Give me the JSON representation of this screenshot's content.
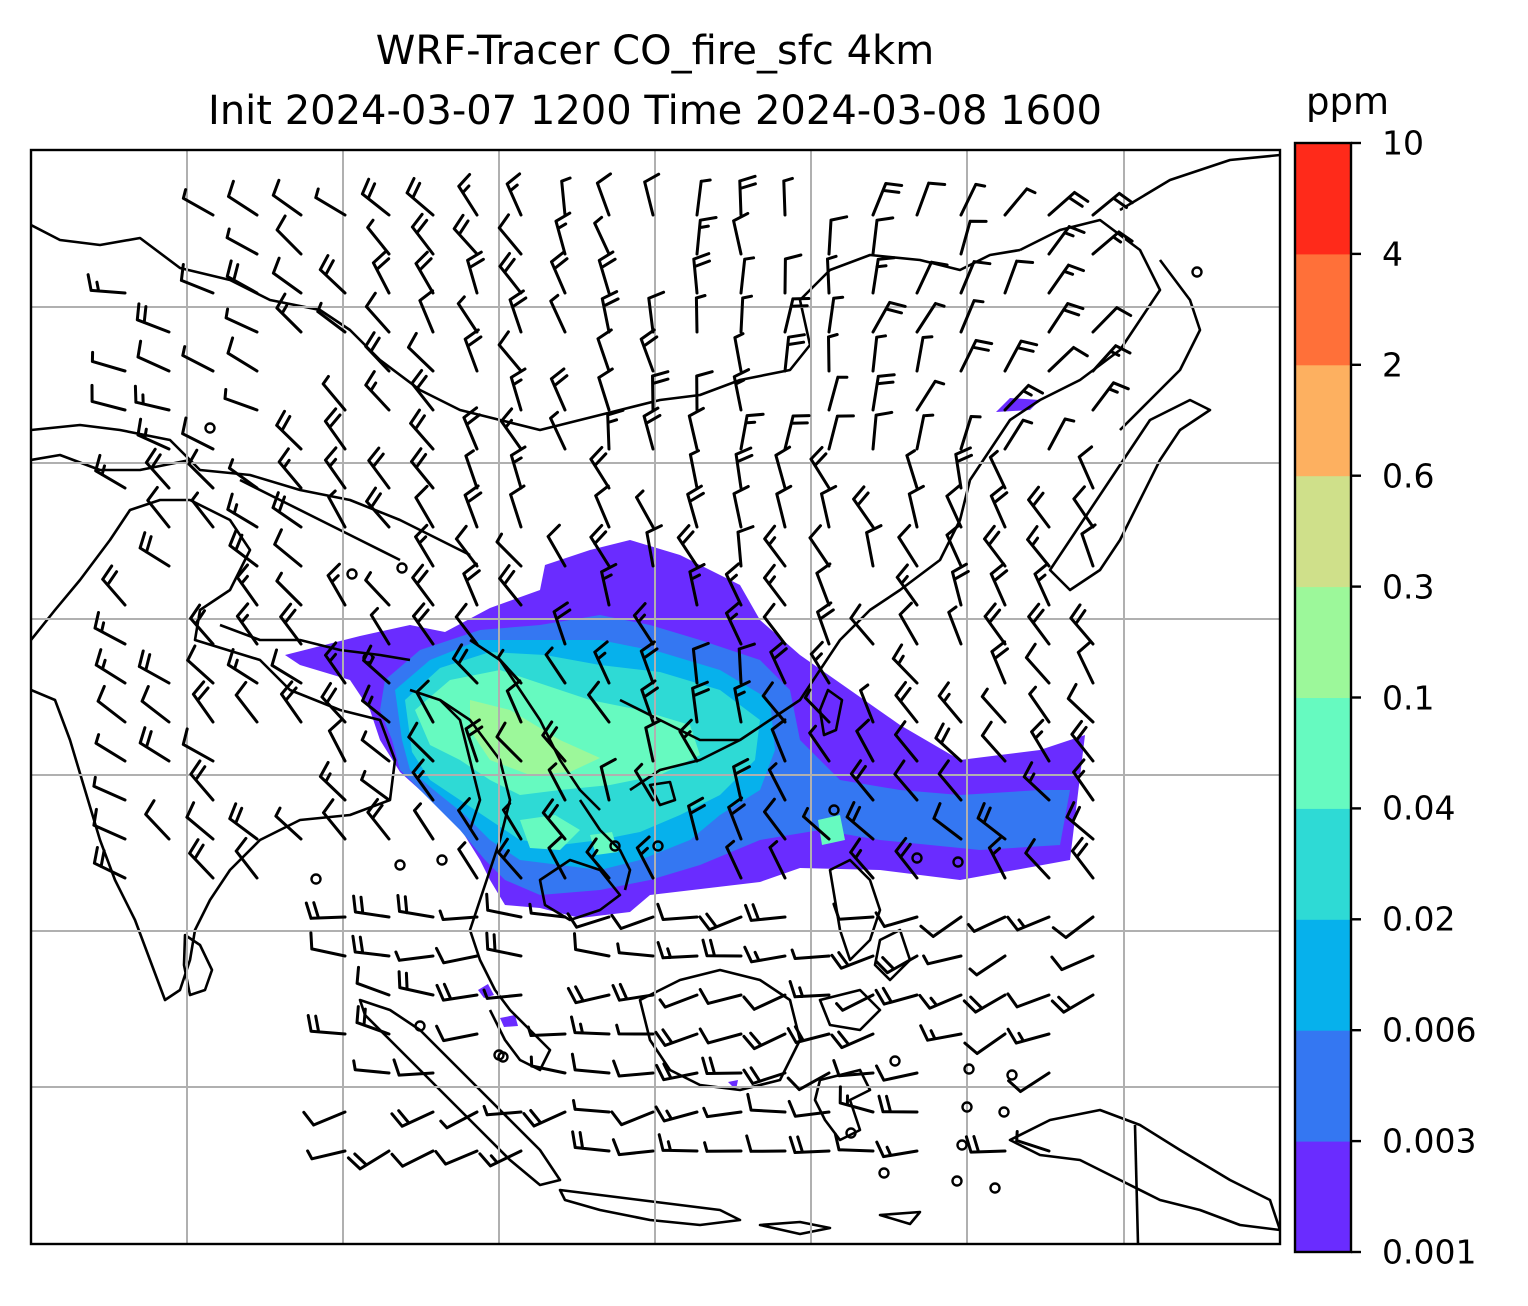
{
  "title_line1": "WRF-Tracer CO_fire_sfc 4km",
  "title_line2": "Init 2024-03-07 1200 Time 2024-03-08 1600",
  "colorbar": {
    "unit": "ppm",
    "levels": [
      "0.001",
      "0.003",
      "0.006",
      "0.02",
      "0.04",
      "0.1",
      "0.3",
      "0.6",
      "2",
      "4",
      "10"
    ],
    "colors": [
      "#6a2cff",
      "#3477f2",
      "#06b1ec",
      "#2edad5",
      "#66fac0",
      "#9cf89a",
      "#cfe08a",
      "#fdb060",
      "#ff7039",
      "#ff2a1a"
    ]
  },
  "map": {
    "content": "CO fire surface tracer concentration with wind barbs over South and Southeast Asia",
    "gridlines": true
  }
}
